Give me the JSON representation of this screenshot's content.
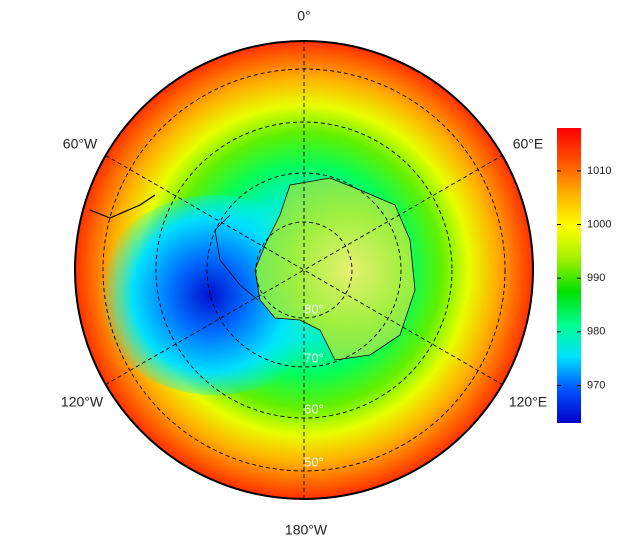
{
  "map": {
    "lon_labels": [
      "0°",
      "60°E",
      "120°E",
      "180°W",
      "120°W",
      "60°W"
    ],
    "lat_labels": [
      "80°",
      "70°",
      "60°",
      "50°"
    ]
  },
  "colorbar": {
    "lim": [
      963,
      1018
    ],
    "ticks": [
      970,
      980,
      990,
      1000,
      1010
    ],
    "colors": [
      "#0000c8",
      "#0050ff",
      "#00e0ff",
      "#00ff90",
      "#00e000",
      "#a0f000",
      "#ffff00",
      "#ffb000",
      "#ff5000",
      "#ff0000"
    ]
  }
}
